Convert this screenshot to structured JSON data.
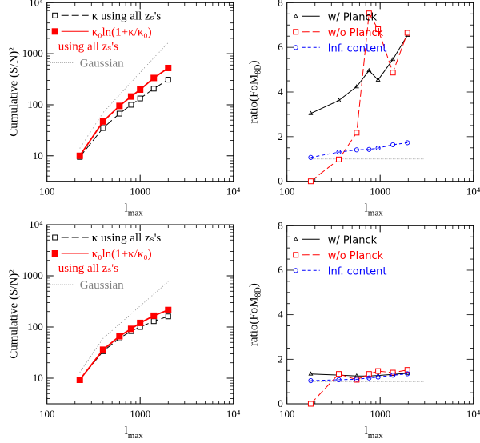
{
  "chart_data": [
    {
      "type": "line",
      "xscale": "log",
      "yscale": "log",
      "xlim": [
        100,
        10000
      ],
      "ylim": [
        3.16,
        10000
      ],
      "xticks": [
        "100",
        "1000",
        "10⁴"
      ],
      "xtick_values": [
        100,
        1000,
        10000
      ],
      "yticks": [
        "10",
        "100",
        "1000",
        "10⁴"
      ],
      "ytick_values": [
        10,
        100,
        1000,
        10000
      ],
      "xlabel": "l",
      "xlabel_sub": "max",
      "ylabel": "Cumulative (S/N)²",
      "legend_placement": "top-left",
      "series": [
        {
          "name": "κ using all zₛ's",
          "color": "#000000",
          "marker": "open-square",
          "line": "long-dash",
          "x": [
            225,
            400,
            600,
            800,
            1000,
            1400,
            2000
          ],
          "y": [
            9.5,
            35,
            67,
            100,
            133,
            207,
            310
          ]
        },
        {
          "name": "κ₀ln(1+κ/κ₀)",
          "name_line2": "using all zₛ's",
          "color": "#ff0000",
          "marker": "filled-square",
          "line": "solid",
          "x": [
            225,
            400,
            600,
            800,
            1000,
            1400,
            2000
          ],
          "y": [
            10,
            47,
            95,
            145,
            198,
            335,
            525
          ]
        },
        {
          "name": "Gaussian",
          "color": "#808080",
          "marker": "none",
          "line": "dotted",
          "x": [
            225,
            400,
            1000,
            2000
          ],
          "y": [
            14,
            70,
            430,
            1650
          ]
        }
      ]
    },
    {
      "type": "line",
      "xscale": "log",
      "yscale": "linear",
      "xlim": [
        100,
        10000
      ],
      "ylim": [
        0,
        8
      ],
      "xticks": [
        "100",
        "1000",
        "10⁴"
      ],
      "xtick_values": [
        100,
        1000,
        10000
      ],
      "yticks": [
        "0",
        "2",
        "4",
        "6",
        "8"
      ],
      "ytick_values": [
        0,
        2,
        4,
        6,
        8
      ],
      "xlabel": "l",
      "xlabel_sub": "max",
      "ylabel": "ratio(FoM",
      "ylabel_sub": "8D",
      "ylabel_end": ")",
      "legend_placement": "top-left",
      "reference_line": {
        "y": 1,
        "x": [
          180,
          3000
        ],
        "color": "#999999"
      },
      "series": [
        {
          "name": "w/ Planck",
          "color": "#000000",
          "marker": "open-triangle",
          "line": "solid",
          "x": [
            180,
            360,
            560,
            760,
            950,
            1370,
            1960
          ],
          "y": [
            3.04,
            3.62,
            4.24,
            4.96,
            4.54,
            5.46,
            6.54
          ]
        },
        {
          "name": "w/o Planck",
          "color": "#ff0000",
          "marker": "open-square",
          "line": "long-dash",
          "x": [
            180,
            360,
            560,
            760,
            950,
            1370,
            1960
          ],
          "y": [
            0,
            0.98,
            2.18,
            7.52,
            6.81,
            4.87,
            6.65
          ]
        },
        {
          "name": "Inf. content",
          "color": "#0000ff",
          "marker": "open-circle",
          "line": "short-dash",
          "x": [
            180,
            360,
            560,
            760,
            950,
            1370,
            1960
          ],
          "y": [
            1.07,
            1.31,
            1.41,
            1.43,
            1.49,
            1.64,
            1.73
          ]
        }
      ]
    },
    {
      "type": "line",
      "xscale": "log",
      "yscale": "log",
      "xlim": [
        100,
        10000
      ],
      "ylim": [
        3.16,
        10000
      ],
      "xticks": [
        "100",
        "1000",
        "10⁴"
      ],
      "xtick_values": [
        100,
        1000,
        10000
      ],
      "yticks": [
        "10",
        "100",
        "1000",
        "10⁴"
      ],
      "ytick_values": [
        10,
        100,
        1000,
        10000
      ],
      "xlabel": "l",
      "xlabel_sub": "max",
      "ylabel": "Cumulative (S/N)²",
      "legend_placement": "top-left",
      "series": [
        {
          "name": "κ using all zₛ's",
          "color": "#000000",
          "marker": "open-square",
          "line": "long-dash",
          "x": [
            225,
            400,
            600,
            800,
            1000,
            1400,
            2000
          ],
          "y": [
            9.3,
            33.6,
            60,
            83,
            100,
            130,
            161
          ]
        },
        {
          "name": "κ₀ln(1+κ/κ₀)",
          "name_line2": "using all zₛ's",
          "color": "#ff0000",
          "marker": "filled-square",
          "line": "solid",
          "x": [
            225,
            400,
            600,
            800,
            1000,
            1400,
            2000
          ],
          "y": [
            9.3,
            36,
            66,
            92,
            120,
            166,
            215
          ]
        },
        {
          "name": "Gaussian",
          "color": "#808080",
          "marker": "none",
          "line": "dotted",
          "x": [
            225,
            400,
            1000,
            2000
          ],
          "y": [
            13,
            60,
            257,
            768
          ]
        }
      ]
    },
    {
      "type": "line",
      "xscale": "log",
      "yscale": "linear",
      "xlim": [
        100,
        10000
      ],
      "ylim": [
        0,
        8
      ],
      "xticks": [
        "100",
        "1000",
        "10⁴"
      ],
      "xtick_values": [
        100,
        1000,
        10000
      ],
      "yticks": [
        "0",
        "2",
        "4",
        "6",
        "8"
      ],
      "ytick_values": [
        0,
        2,
        4,
        6,
        8
      ],
      "xlabel": "l",
      "xlabel_sub": "max",
      "ylabel": "ratio(FoM",
      "ylabel_sub": "8D",
      "ylabel_end": ")",
      "legend_placement": "top-left",
      "reference_line": {
        "y": 1,
        "x": [
          180,
          3000
        ],
        "color": "#999999"
      },
      "series": [
        {
          "name": "w/ Planck",
          "color": "#000000",
          "marker": "open-triangle",
          "line": "solid",
          "x": [
            180,
            360,
            560,
            760,
            950,
            1370,
            1960
          ],
          "y": [
            1.34,
            1.29,
            1.25,
            1.25,
            1.27,
            1.32,
            1.37
          ]
        },
        {
          "name": "w/o Planck",
          "color": "#ff0000",
          "marker": "open-square",
          "line": "long-dash",
          "x": [
            180,
            360,
            560,
            760,
            950,
            1370,
            1960
          ],
          "y": [
            0,
            1.34,
            1.08,
            1.34,
            1.47,
            1.4,
            1.52
          ]
        },
        {
          "name": "Inf. content",
          "color": "#0000ff",
          "marker": "open-circle",
          "line": "short-dash",
          "x": [
            180,
            360,
            560,
            760,
            950,
            1370,
            1960
          ],
          "y": [
            1.04,
            1.08,
            1.1,
            1.16,
            1.2,
            1.28,
            1.35
          ]
        }
      ]
    }
  ]
}
